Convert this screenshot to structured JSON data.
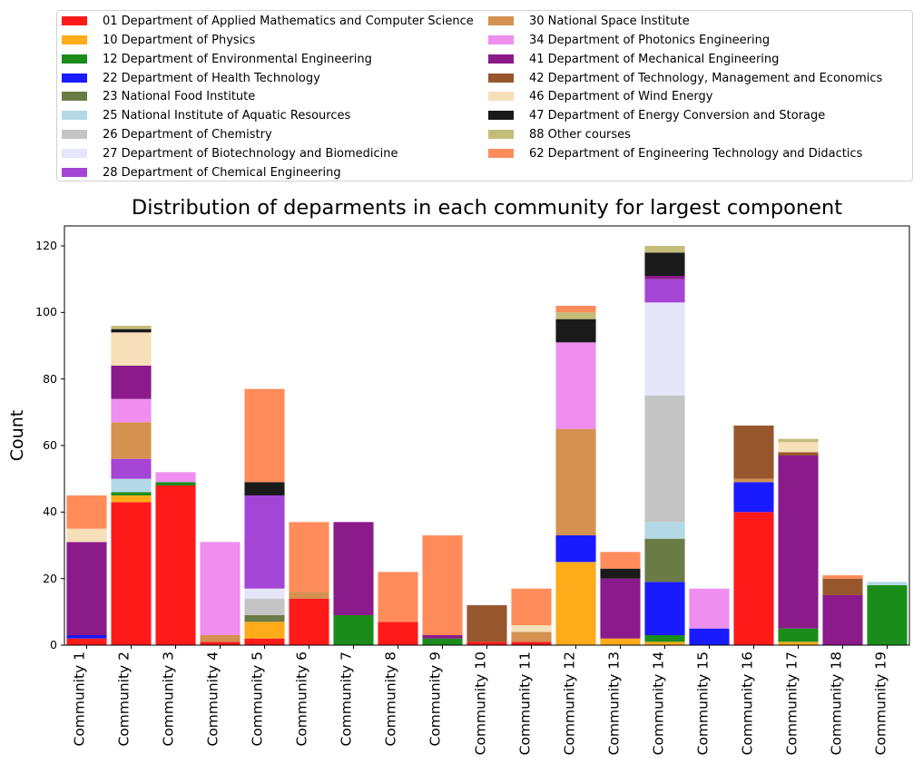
{
  "chart_data": {
    "type": "bar",
    "stacked": true,
    "title": "Distribution of deparments in each community for largest component",
    "xlabel": "",
    "ylabel": "Count",
    "ylim": [
      0,
      126
    ],
    "yticks": [
      0,
      20,
      40,
      60,
      80,
      100,
      120
    ],
    "grid": false,
    "legend_position": "top",
    "categories": [
      "Community 1",
      "Community 2",
      "Community 3",
      "Community 4",
      "Community 5",
      "Community 6",
      "Community 7",
      "Community 8",
      "Community 9",
      "Community 10",
      "Community 11",
      "Community 12",
      "Community 13",
      "Community 14",
      "Community 15",
      "Community 16",
      "Community 17",
      "Community 18",
      "Community 19"
    ],
    "series": [
      {
        "name": "01 Department of Applied Mathematics and Computer Science",
        "color": "#ff1a1a",
        "values": [
          2,
          43,
          48,
          1,
          2,
          14,
          0,
          7,
          0,
          1,
          1,
          0,
          0,
          0,
          0,
          40,
          0,
          0,
          0
        ]
      },
      {
        "name": "10 Department of Physics",
        "color": "#ffab1a",
        "values": [
          0,
          2,
          0,
          0,
          5,
          0,
          0,
          0,
          0,
          0,
          0,
          25,
          2,
          1,
          0,
          0,
          1,
          0,
          0
        ]
      },
      {
        "name": "12 Department of Environmental Engineering",
        "color": "#1a8c1a",
        "values": [
          0,
          1,
          1,
          0,
          0,
          0,
          9,
          0,
          2,
          0,
          0,
          0,
          0,
          2,
          0,
          0,
          4,
          0,
          18
        ]
      },
      {
        "name": "22 Department of Health Technology",
        "color": "#1a1aff",
        "values": [
          1,
          0,
          0,
          0,
          0,
          0,
          0,
          0,
          0,
          0,
          0,
          8,
          0,
          16,
          5,
          9,
          0,
          0,
          0
        ]
      },
      {
        "name": "23 National Food Institute",
        "color": "#6b7b45",
        "values": [
          0,
          0,
          0,
          0,
          2,
          0,
          0,
          0,
          0,
          0,
          0,
          0,
          0,
          13,
          0,
          0,
          0,
          0,
          0
        ]
      },
      {
        "name": "25 National Institute of Aquatic Resources",
        "color": "#b3d9e6",
        "values": [
          0,
          4,
          0,
          0,
          0,
          0,
          0,
          0,
          0,
          0,
          0,
          0,
          0,
          5,
          0,
          0,
          0,
          0,
          1
        ]
      },
      {
        "name": "26 Department of Chemistry",
        "color": "#c4c4c4",
        "values": [
          0,
          0,
          0,
          0,
          5,
          0,
          0,
          0,
          0,
          0,
          0,
          0,
          0,
          38,
          0,
          0,
          0,
          0,
          0
        ]
      },
      {
        "name": "27 Department of Biotechnology and Biomedicine",
        "color": "#e6e6fa",
        "values": [
          0,
          0,
          0,
          0,
          3,
          0,
          0,
          0,
          0,
          0,
          0,
          0,
          0,
          28,
          0,
          0,
          0,
          0,
          0
        ]
      },
      {
        "name": "28 Department of Chemical Engineering",
        "color": "#a445d6",
        "values": [
          0,
          6,
          0,
          0,
          28,
          0,
          0,
          0,
          0,
          0,
          0,
          0,
          0,
          7,
          0,
          0,
          0,
          0,
          0
        ]
      },
      {
        "name": "30 National Space Institute",
        "color": "#d4914f",
        "values": [
          0,
          11,
          0,
          2,
          0,
          2,
          0,
          0,
          0,
          0,
          3,
          32,
          0,
          0,
          0,
          1,
          0,
          0,
          0
        ]
      },
      {
        "name": "34 Department of Photonics Engineering",
        "color": "#ef8eef",
        "values": [
          0,
          7,
          3,
          28,
          0,
          0,
          0,
          0,
          0,
          0,
          0,
          26,
          0,
          0,
          12,
          0,
          0,
          0,
          0
        ]
      },
      {
        "name": "41 Department of Mechanical Engineering",
        "color": "#8b1a8b",
        "values": [
          28,
          10,
          0,
          0,
          0,
          0,
          28,
          0,
          1,
          0,
          0,
          0,
          18,
          1,
          0,
          0,
          52,
          15,
          0
        ]
      },
      {
        "name": "42 Department of Technology, Management and Economics",
        "color": "#97572d",
        "values": [
          0,
          0,
          0,
          0,
          0,
          0,
          0,
          0,
          0,
          11,
          0,
          0,
          0,
          0,
          0,
          16,
          1,
          5,
          0
        ]
      },
      {
        "name": "46 Department of Wind Energy",
        "color": "#f7dfb9",
        "values": [
          4,
          10,
          0,
          0,
          0,
          0,
          0,
          0,
          0,
          0,
          2,
          0,
          0,
          0,
          0,
          0,
          3,
          0,
          0
        ]
      },
      {
        "name": "47 Department of Energy Conversion and Storage",
        "color": "#1a1a1a",
        "values": [
          0,
          1,
          0,
          0,
          4,
          0,
          0,
          0,
          0,
          0,
          0,
          7,
          3,
          7,
          0,
          0,
          0,
          0,
          0
        ]
      },
      {
        "name": "88 Other courses",
        "color": "#c4bd7a",
        "values": [
          0,
          1,
          0,
          0,
          0,
          0,
          0,
          0,
          0,
          0,
          0,
          2,
          0,
          2,
          0,
          0,
          1,
          0,
          0
        ]
      },
      {
        "name": "62 Department of Engineering Technology and Didactics",
        "color": "#ff8c5a",
        "values": [
          10,
          0,
          0,
          0,
          28,
          21,
          0,
          15,
          30,
          0,
          11,
          2,
          5,
          0,
          0,
          0,
          0,
          1,
          0
        ]
      }
    ]
  }
}
